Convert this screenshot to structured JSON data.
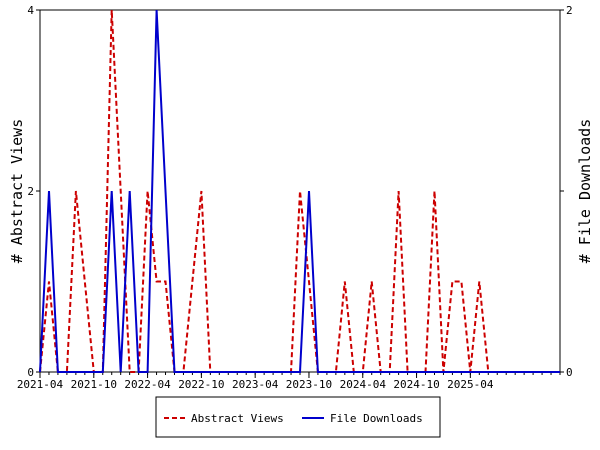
{
  "chart_data": {
    "type": "line",
    "ylabel_left": "# Abstract Views",
    "ylabel_right": "# File Downloads",
    "left_axis": {
      "range": [
        0,
        4
      ],
      "tick_labels": [
        "0",
        "2",
        "4"
      ]
    },
    "right_axis": {
      "range": [
        0,
        2
      ],
      "tick_labels": [
        "0",
        "1",
        "2"
      ]
    },
    "x_range": [
      "2021-04",
      "2026-02"
    ],
    "x_tick_labels": [
      "2021-04",
      "2021-10",
      "2022-04",
      "2022-10",
      "2023-04",
      "2023-10",
      "2024-04",
      "2024-10",
      "2025-04"
    ],
    "legend_position": "bottom-center",
    "grid": false,
    "x": [
      "2021-04",
      "2021-05",
      "2021-06",
      "2021-07",
      "2021-08",
      "2021-09",
      "2021-10",
      "2021-11",
      "2021-12",
      "2022-01",
      "2022-02",
      "2022-03",
      "2022-04",
      "2022-05",
      "2022-06",
      "2022-07",
      "2022-08",
      "2022-09",
      "2022-10",
      "2022-11",
      "2022-12",
      "2023-01",
      "2023-02",
      "2023-03",
      "2023-04",
      "2023-05",
      "2023-06",
      "2023-07",
      "2023-08",
      "2023-09",
      "2023-10",
      "2023-11",
      "2023-12",
      "2024-01",
      "2024-02",
      "2024-03",
      "2024-04",
      "2024-05",
      "2024-06",
      "2024-07",
      "2024-08",
      "2024-09",
      "2024-10",
      "2024-11",
      "2024-12",
      "2025-01",
      "2025-02",
      "2025-03",
      "2025-04",
      "2025-05",
      "2025-06",
      "2025-07",
      "2025-08",
      "2025-09",
      "2025-10",
      "2025-11",
      "2025-12",
      "2026-01",
      "2026-02"
    ],
    "series": [
      {
        "name": "Abstract Views",
        "axis": "left",
        "color": "#cc0000",
        "dash": "dashed",
        "values": [
          0,
          1,
          0,
          0,
          2,
          1,
          0,
          0,
          4,
          2,
          0,
          0,
          2,
          1,
          1,
          0,
          0,
          1,
          2,
          0,
          0,
          0,
          0,
          0,
          0,
          0,
          0,
          0,
          0,
          2,
          1,
          0,
          0,
          0,
          1,
          0,
          0,
          1,
          0,
          0,
          2,
          0,
          0,
          0,
          2,
          0,
          1,
          1,
          0,
          1,
          0,
          0,
          0,
          0,
          0,
          0,
          0,
          0,
          0
        ]
      },
      {
        "name": "File Downloads",
        "axis": "right",
        "color": "#0000cc",
        "dash": "solid",
        "values": [
          0,
          1,
          0,
          0,
          0,
          0,
          0,
          0,
          1,
          0,
          1,
          0,
          0,
          2,
          1,
          0,
          0,
          0,
          0,
          0,
          0,
          0,
          0,
          0,
          0,
          0,
          0,
          0,
          0,
          0,
          1,
          0,
          0,
          0,
          0,
          0,
          0,
          0,
          0,
          0,
          0,
          0,
          0,
          0,
          0,
          0,
          0,
          0,
          0,
          0,
          0,
          0,
          0,
          0,
          0,
          0,
          0,
          0,
          0
        ]
      }
    ]
  }
}
